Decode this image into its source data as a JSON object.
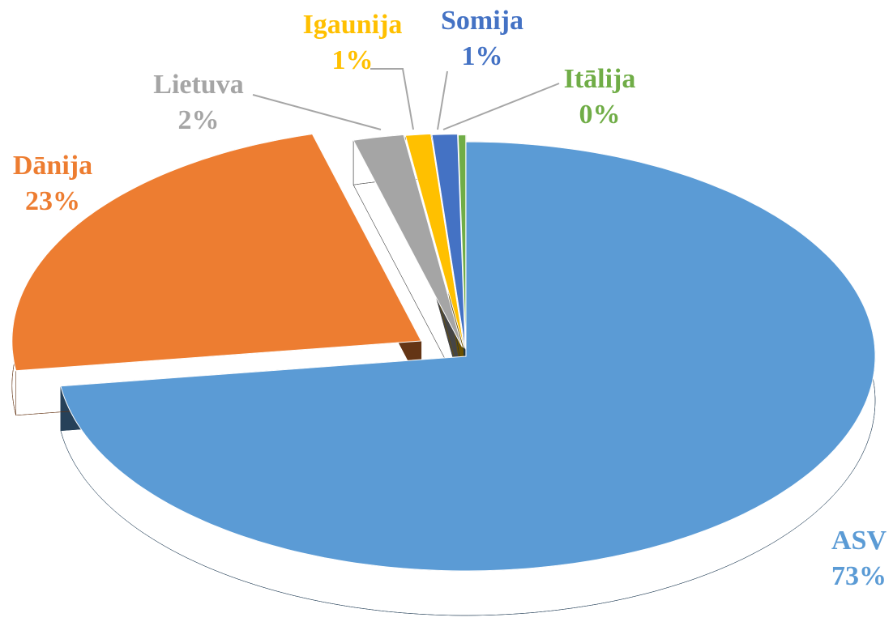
{
  "chart_data": {
    "type": "pie",
    "categories": [
      "ASV",
      "Dānija",
      "Lietuva",
      "Igaunija",
      "Somija",
      "Itālija"
    ],
    "values": [
      73,
      23,
      2,
      1,
      1,
      0.3
    ],
    "value_labels": [
      "73%",
      "23%",
      "2%",
      "1%",
      "1%",
      "0%"
    ],
    "colors": [
      "#5b9bd5",
      "#ed7d31",
      "#a5a5a5",
      "#ffc000",
      "#4472c4",
      "#70ad47"
    ]
  }
}
